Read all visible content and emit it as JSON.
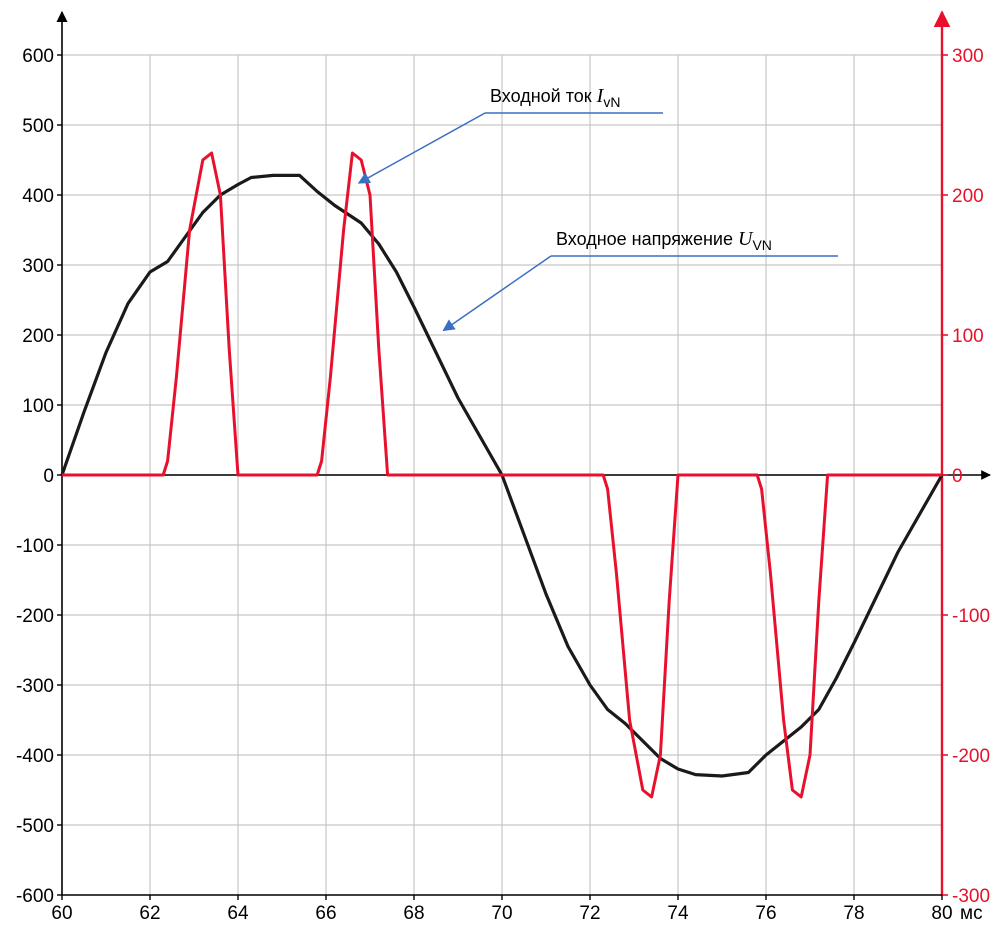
{
  "chart_data": {
    "type": "line",
    "x_unit": "мс",
    "xlim": [
      60,
      80
    ],
    "x_ticks": [
      60,
      62,
      64,
      66,
      68,
      70,
      72,
      74,
      76,
      78,
      80
    ],
    "y_left_lim": [
      -600,
      600
    ],
    "y_left_ticks": [
      600,
      500,
      400,
      300,
      200,
      100,
      0,
      -100,
      -200,
      -300,
      -400,
      -500,
      -600
    ],
    "y_right_lim": [
      -300,
      300
    ],
    "y_right_ticks": [
      300,
      200,
      100,
      0,
      -100,
      -200,
      -300
    ],
    "grid": true,
    "colors": {
      "voltage": "#1a1a1a",
      "current": "#e8112d",
      "arrow": "#3a6fc4",
      "grid": "#c8c8c8"
    },
    "annotations": [
      {
        "id": "current",
        "text_main": "Входной ток ",
        "text_var": "I",
        "text_sub": "vN",
        "target_x": 66.7,
        "target_y_right": 210
      },
      {
        "id": "voltage",
        "text_main": "Входное напряжение ",
        "text_var": "U",
        "text_sub": "VN",
        "target_x": 68.6,
        "target_y_left": 215
      }
    ],
    "series": [
      {
        "axis": "left",
        "x": [
          60,
          60.5,
          61,
          61.5,
          62,
          62.4,
          62.8,
          63.2,
          63.6,
          64,
          64.3,
          64.8,
          65.4,
          65.8,
          66.2,
          66.8,
          67.2,
          67.6,
          68,
          68.5,
          69,
          69.5,
          70,
          70.5,
          71,
          71.5,
          72,
          72.4,
          72.8,
          73.2,
          73.6,
          74,
          74.4,
          75,
          75.6,
          76,
          76.4,
          76.8,
          77.2,
          77.6,
          78,
          78.5,
          79,
          79.5,
          80
        ],
        "values": [
          0,
          90,
          175,
          245,
          290,
          305,
          340,
          375,
          400,
          415,
          425,
          428,
          428,
          405,
          385,
          360,
          330,
          290,
          240,
          175,
          110,
          55,
          0,
          -85,
          -170,
          -245,
          -300,
          -335,
          -355,
          -380,
          -405,
          -420,
          -428,
          -430,
          -425,
          -400,
          -380,
          -360,
          -335,
          -290,
          -240,
          -175,
          -110,
          -55,
          0
        ]
      },
      {
        "axis": "right",
        "x": [
          60,
          62.3,
          62.4,
          62.6,
          62.9,
          63.2,
          63.4,
          63.6,
          63.8,
          64,
          65.8,
          65.9,
          66.1,
          66.4,
          66.6,
          66.8,
          67,
          67.2,
          67.4,
          72.3,
          72.4,
          72.6,
          72.9,
          73.2,
          73.4,
          73.6,
          73.8,
          74,
          75.8,
          75.9,
          76.1,
          76.4,
          76.6,
          76.8,
          77,
          77.2,
          77.4,
          80
        ],
        "values": [
          0,
          0,
          10,
          70,
          175,
          225,
          230,
          200,
          90,
          0,
          0,
          10,
          70,
          175,
          230,
          225,
          200,
          90,
          0,
          0,
          -10,
          -70,
          -175,
          -225,
          -230,
          -200,
          -90,
          0,
          0,
          -10,
          -70,
          -175,
          -225,
          -230,
          -200,
          -90,
          0,
          0
        ]
      }
    ]
  }
}
